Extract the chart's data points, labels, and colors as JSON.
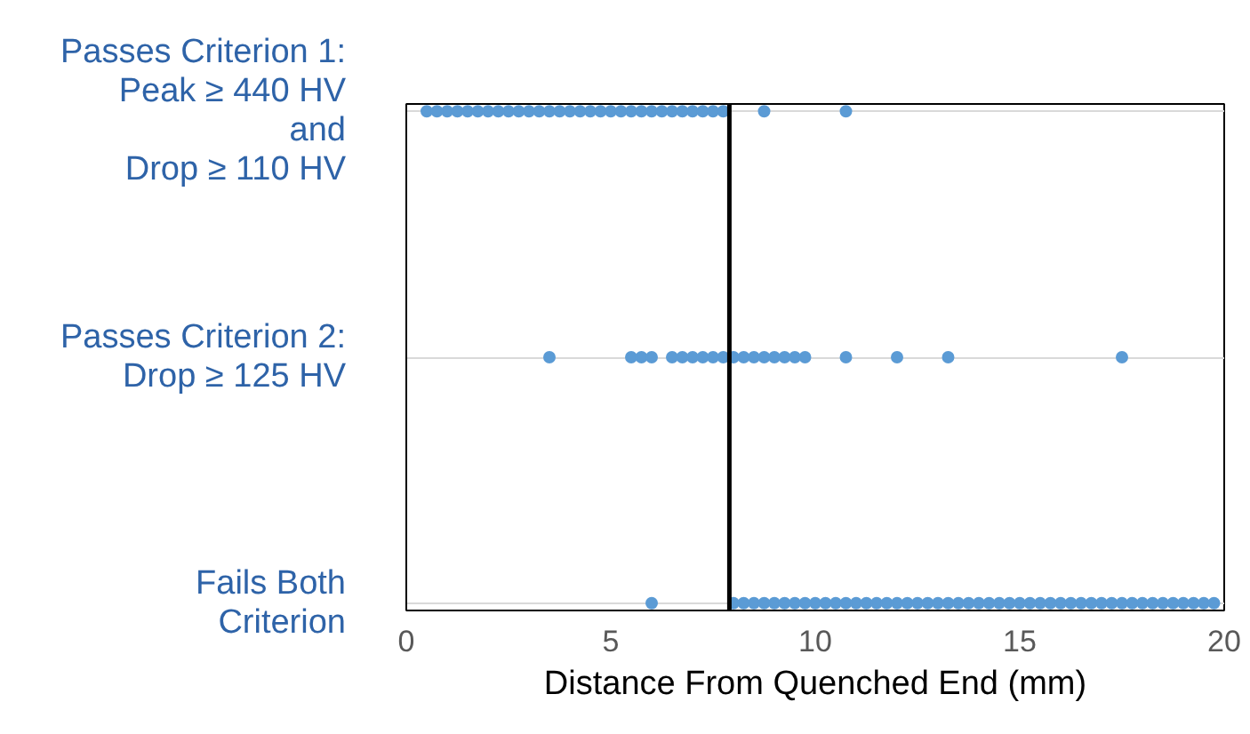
{
  "chart_data": {
    "type": "scatter",
    "orientation": "horizontal",
    "xlabel": "Distance From Quenched End (mm)",
    "categories": [
      "Passes Criterion 1:\nPeak ≥ 440 HV\nand\nDrop ≥ 110 HV",
      "Passes Criterion 2:\nDrop ≥ 125 HV",
      "Fails Both\nCriterion"
    ],
    "xlim": [
      0,
      20
    ],
    "xticks": [
      0,
      5,
      10,
      15,
      20
    ],
    "grid": "y",
    "marker": "circle",
    "ref_lines": [
      {
        "axis": "x",
        "value": 7.9,
        "color": "#000000"
      }
    ],
    "series": [
      {
        "color": "#5b9bd5",
        "values": [
          0.5,
          0.75,
          1,
          1.25,
          1.5,
          1.75,
          2,
          2.25,
          2.5,
          2.75,
          3,
          3.25,
          3.5,
          3.75,
          4,
          4.25,
          4.5,
          4.75,
          5,
          5.25,
          5.5,
          5.75,
          6,
          6.25,
          6.5,
          6.75,
          7,
          7.25,
          7.5,
          7.75,
          8.75,
          10.75
        ],
        "x": [
          "Passes Criterion 1:\nPeak ≥ 440 HV\nand\nDrop ≥ 110 HV",
          "Passes Criterion 1:\nPeak ≥ 440 HV\nand\nDrop ≥ 110 HV",
          "Passes Criterion 1:\nPeak ≥ 440 HV\nand\nDrop ≥ 110 HV",
          "Passes Criterion 1:\nPeak ≥ 440 HV\nand\nDrop ≥ 110 HV",
          "Passes Criterion 1:\nPeak ≥ 440 HV\nand\nDrop ≥ 110 HV",
          "Passes Criterion 1:\nPeak ≥ 440 HV\nand\nDrop ≥ 110 HV",
          "Passes Criterion 1:\nPeak ≥ 440 HV\nand\nDrop ≥ 110 HV",
          "Passes Criterion 1:\nPeak ≥ 440 HV\nand\nDrop ≥ 110 HV",
          "Passes Criterion 1:\nPeak ≥ 440 HV\nand\nDrop ≥ 110 HV",
          "Passes Criterion 1:\nPeak ≥ 440 HV\nand\nDrop ≥ 110 HV",
          "Passes Criterion 1:\nPeak ≥ 440 HV\nand\nDrop ≥ 110 HV",
          "Passes Criterion 1:\nPeak ≥ 440 HV\nand\nDrop ≥ 110 HV",
          "Passes Criterion 1:\nPeak ≥ 440 HV\nand\nDrop ≥ 110 HV",
          "Passes Criterion 1:\nPeak ≥ 440 HV\nand\nDrop ≥ 110 HV",
          "Passes Criterion 1:\nPeak ≥ 440 HV\nand\nDrop ≥ 110 HV",
          "Passes Criterion 1:\nPeak ≥ 440 HV\nand\nDrop ≥ 110 HV",
          "Passes Criterion 1:\nPeak ≥ 440 HV\nand\nDrop ≥ 110 HV",
          "Passes Criterion 1:\nPeak ≥ 440 HV\nand\nDrop ≥ 110 HV",
          "Passes Criterion 1:\nPeak ≥ 440 HV\nand\nDrop ≥ 110 HV",
          "Passes Criterion 1:\nPeak ≥ 440 HV\nand\nDrop ≥ 110 HV",
          "Passes Criterion 1:\nPeak ≥ 440 HV\nand\nDrop ≥ 110 HV",
          "Passes Criterion 1:\nPeak ≥ 440 HV\nand\nDrop ≥ 110 HV",
          "Passes Criterion 1:\nPeak ≥ 440 HV\nand\nDrop ≥ 110 HV",
          "Passes Criterion 1:\nPeak ≥ 440 HV\nand\nDrop ≥ 110 HV",
          "Passes Criterion 1:\nPeak ≥ 440 HV\nand\nDrop ≥ 110 HV",
          "Passes Criterion 1:\nPeak ≥ 440 HV\nand\nDrop ≥ 110 HV",
          "Passes Criterion 1:\nPeak ≥ 440 HV\nand\nDrop ≥ 110 HV",
          "Passes Criterion 1:\nPeak ≥ 440 HV\nand\nDrop ≥ 110 HV",
          "Passes Criterion 1:\nPeak ≥ 440 HV\nand\nDrop ≥ 110 HV",
          "Passes Criterion 1:\nPeak ≥ 440 HV\nand\nDrop ≥ 110 HV",
          "Passes Criterion 1:\nPeak ≥ 440 HV\nand\nDrop ≥ 110 HV",
          "Passes Criterion 1:\nPeak ≥ 440 HV\nand\nDrop ≥ 110 HV"
        ]
      },
      {
        "color": "#5b9bd5",
        "values": [
          3.5,
          5.5,
          5.75,
          6,
          6.5,
          6.75,
          7,
          7.25,
          7.5,
          7.75,
          8,
          8.25,
          8.5,
          8.75,
          9,
          9.25,
          9.5,
          9.75,
          10.75,
          12,
          13.25,
          17.5
        ],
        "x": [
          "Passes Criterion 2:\nDrop ≥ 125 HV",
          "Passes Criterion 2:\nDrop ≥ 125 HV",
          "Passes Criterion 2:\nDrop ≥ 125 HV",
          "Passes Criterion 2:\nDrop ≥ 125 HV",
          "Passes Criterion 2:\nDrop ≥ 125 HV",
          "Passes Criterion 2:\nDrop ≥ 125 HV",
          "Passes Criterion 2:\nDrop ≥ 125 HV",
          "Passes Criterion 2:\nDrop ≥ 125 HV",
          "Passes Criterion 2:\nDrop ≥ 125 HV",
          "Passes Criterion 2:\nDrop ≥ 125 HV",
          "Passes Criterion 2:\nDrop ≥ 125 HV",
          "Passes Criterion 2:\nDrop ≥ 125 HV",
          "Passes Criterion 2:\nDrop ≥ 125 HV",
          "Passes Criterion 2:\nDrop ≥ 125 HV",
          "Passes Criterion 2:\nDrop ≥ 125 HV",
          "Passes Criterion 2:\nDrop ≥ 125 HV",
          "Passes Criterion 2:\nDrop ≥ 125 HV",
          "Passes Criterion 2:\nDrop ≥ 125 HV",
          "Passes Criterion 2:\nDrop ≥ 125 HV",
          "Passes Criterion 2:\nDrop ≥ 125 HV",
          "Passes Criterion 2:\nDrop ≥ 125 HV",
          "Passes Criterion 2:\nDrop ≥ 125 HV"
        ]
      },
      {
        "color": "#5b9bd5",
        "values": [
          6,
          8,
          8.25,
          8.5,
          8.75,
          9,
          9.25,
          9.5,
          9.75,
          10,
          10.25,
          10.5,
          10.75,
          11,
          11.25,
          11.5,
          11.75,
          12,
          12.25,
          12.5,
          12.75,
          13,
          13.25,
          13.5,
          13.75,
          14,
          14.25,
          14.5,
          14.75,
          15,
          15.25,
          15.5,
          15.75,
          16,
          16.25,
          16.5,
          16.75,
          17,
          17.25,
          17.5,
          17.75,
          18,
          18.25,
          18.5,
          18.75,
          19,
          19.25,
          19.5,
          19.75
        ],
        "x": [
          "Fails Both\nCriterion",
          "Fails Both\nCriterion",
          "Fails Both\nCriterion",
          "Fails Both\nCriterion",
          "Fails Both\nCriterion",
          "Fails Both\nCriterion",
          "Fails Both\nCriterion",
          "Fails Both\nCriterion",
          "Fails Both\nCriterion",
          "Fails Both\nCriterion",
          "Fails Both\nCriterion",
          "Fails Both\nCriterion",
          "Fails Both\nCriterion",
          "Fails Both\nCriterion",
          "Fails Both\nCriterion",
          "Fails Both\nCriterion",
          "Fails Both\nCriterion",
          "Fails Both\nCriterion",
          "Fails Both\nCriterion",
          "Fails Both\nCriterion",
          "Fails Both\nCriterion",
          "Fails Both\nCriterion",
          "Fails Both\nCriterion",
          "Fails Both\nCriterion",
          "Fails Both\nCriterion",
          "Fails Both\nCriterion",
          "Fails Both\nCriterion",
          "Fails Both\nCriterion",
          "Fails Both\nCriterion",
          "Fails Both\nCriterion",
          "Fails Both\nCriterion",
          "Fails Both\nCriterion",
          "Fails Both\nCriterion",
          "Fails Both\nCriterion",
          "Fails Both\nCriterion",
          "Fails Both\nCriterion",
          "Fails Both\nCriterion",
          "Fails Both\nCriterion",
          "Fails Both\nCriterion",
          "Fails Both\nCriterion",
          "Fails Both\nCriterion",
          "Fails Both\nCriterion",
          "Fails Both\nCriterion",
          "Fails Both\nCriterion",
          "Fails Both\nCriterion",
          "Fails Both\nCriterion",
          "Fails Both\nCriterion",
          "Fails Both\nCriterion",
          "Fails Both\nCriterion"
        ]
      }
    ]
  }
}
